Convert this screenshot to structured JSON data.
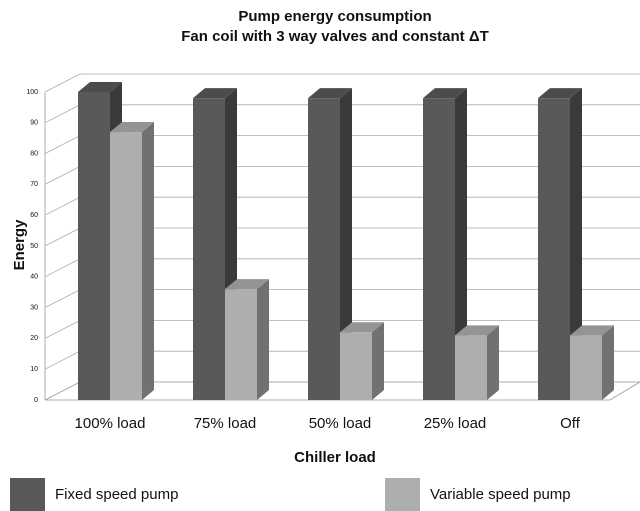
{
  "chart_data": {
    "type": "bar3d",
    "title": [
      "Pump energy consumption",
      "Fan coil with 3 way valves and constant ΔT"
    ],
    "x_label": "Chiller load",
    "y_label": "Energy",
    "categories": [
      "100% load",
      "75% load",
      "50% load",
      "25% load",
      "Off"
    ],
    "series": [
      {
        "name": "Fixed speed pump",
        "color": "#595959",
        "values": [
          100,
          98,
          98,
          98,
          98
        ]
      },
      {
        "name": "Variable speed pump",
        "color": "#adafaf",
        "values": [
          87,
          36,
          22,
          21,
          21
        ]
      }
    ],
    "ylim": [
      0,
      100
    ],
    "yticks": [
      0,
      10,
      20,
      30,
      40,
      50,
      60,
      70,
      80,
      90,
      100
    ],
    "grid": true,
    "legend": "bottom"
  }
}
